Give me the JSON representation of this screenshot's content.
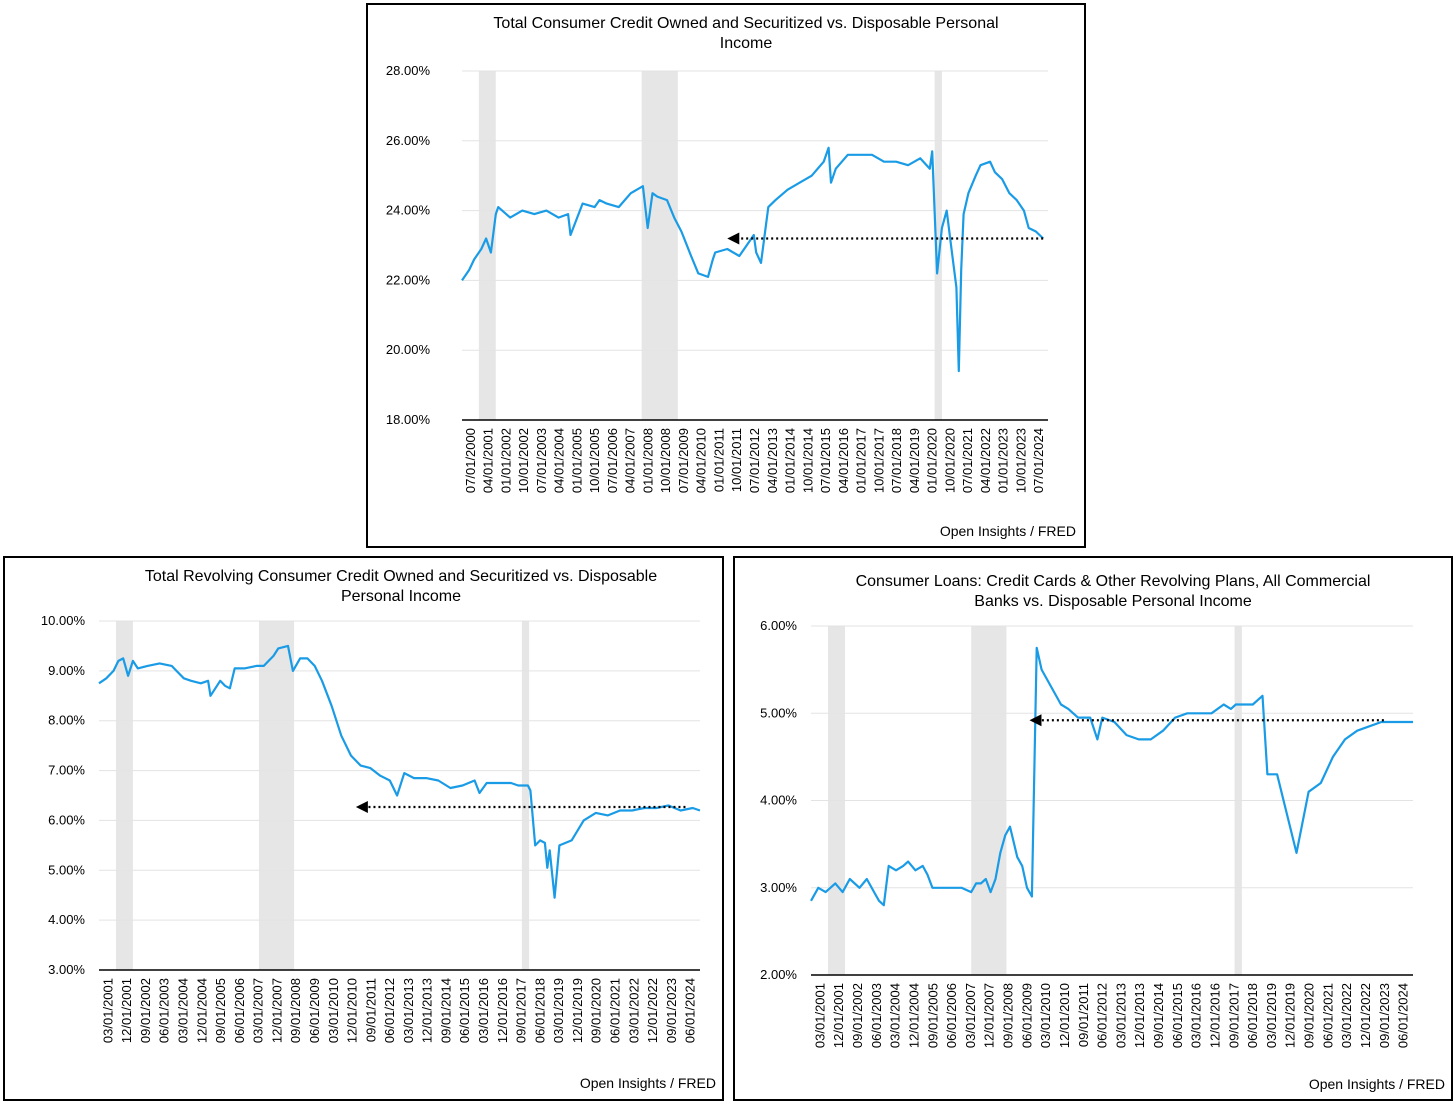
{
  "source_label": "Open Insights / FRED",
  "colors": {
    "line": "#1a9be6",
    "recession": "#e6e6e6",
    "grid": "#e3e3e3",
    "arrow": "#000000"
  },
  "chart_data": [
    {
      "id": "top",
      "type": "line",
      "title": "Total Consumer Credit Owned and Securitized vs. Disposable Personal Income",
      "title_lines": [
        "Total Consumer Credit Owned and Securitized vs. Disposable Personal",
        "Income"
      ],
      "xlabel": "",
      "ylabel": "",
      "x_range": [
        2000.5,
        2024.8
      ],
      "ylim": [
        18,
        28
      ],
      "y_ticks": [
        18,
        20,
        22,
        24,
        26,
        28
      ],
      "y_tick_labels": [
        "18.00%",
        "20.00%",
        "22.00%",
        "24.00%",
        "26.00%",
        "28.00%"
      ],
      "x_tick_labels": [
        "07/01/2000",
        "04/01/2001",
        "01/01/2002",
        "10/01/2002",
        "07/01/2003",
        "04/01/2004",
        "01/01/2005",
        "10/01/2005",
        "07/01/2006",
        "04/01/2007",
        "01/01/2008",
        "10/01/2008",
        "07/01/2009",
        "04/01/2010",
        "01/01/2011",
        "10/01/2011",
        "07/01/2012",
        "04/01/2013",
        "01/01/2014",
        "10/01/2014",
        "07/01/2015",
        "04/01/2016",
        "01/01/2017",
        "10/01/2017",
        "07/01/2018",
        "04/01/2019",
        "01/01/2020",
        "10/01/2020",
        "07/01/2021",
        "04/01/2022",
        "01/01/2023",
        "10/01/2023",
        "07/01/2024"
      ],
      "recessions": [
        [
          2001.2,
          2001.9
        ],
        [
          2007.95,
          2009.45
        ],
        [
          2020.1,
          2020.4
        ]
      ],
      "arrow": {
        "y": 23.2,
        "x_from": 2024.6,
        "x_to": 2011.5
      },
      "x": [
        2000.5,
        2000.8,
        2001.0,
        2001.3,
        2001.5,
        2001.7,
        2001.9,
        2002.0,
        2002.5,
        2003.0,
        2003.5,
        2004.0,
        2004.5,
        2004.9,
        2005.0,
        2005.5,
        2006.0,
        2006.2,
        2006.5,
        2007.0,
        2007.5,
        2008.0,
        2008.2,
        2008.4,
        2008.6,
        2009.0,
        2009.3,
        2009.6,
        2010.0,
        2010.3,
        2010.7,
        2010.9,
        2011.0,
        2011.5,
        2012.0,
        2012.3,
        2012.6,
        2012.7,
        2012.9,
        2013.2,
        2013.5,
        2014.0,
        2014.5,
        2015.0,
        2015.5,
        2015.7,
        2015.8,
        2016.0,
        2016.5,
        2017.0,
        2017.5,
        2018.0,
        2018.5,
        2019.0,
        2019.5,
        2019.9,
        2020.0,
        2020.2,
        2020.4,
        2020.6,
        2020.8,
        2021.0,
        2021.1,
        2021.2,
        2021.3,
        2021.5,
        2021.8,
        2022.0,
        2022.4,
        2022.6,
        2022.9,
        2023.2,
        2023.5,
        2023.8,
        2024.0,
        2024.3,
        2024.6
      ],
      "values": [
        22.0,
        22.3,
        22.6,
        22.9,
        23.2,
        22.8,
        23.9,
        24.1,
        23.8,
        24.0,
        23.9,
        24.0,
        23.8,
        23.9,
        23.3,
        24.2,
        24.1,
        24.3,
        24.2,
        24.1,
        24.5,
        24.7,
        23.5,
        24.5,
        24.4,
        24.3,
        23.8,
        23.4,
        22.7,
        22.2,
        22.1,
        22.6,
        22.8,
        22.9,
        22.7,
        23.0,
        23.3,
        22.8,
        22.5,
        24.1,
        24.3,
        24.6,
        24.8,
        25.0,
        25.4,
        25.8,
        24.8,
        25.2,
        25.6,
        25.6,
        25.6,
        25.4,
        25.4,
        25.3,
        25.5,
        25.2,
        25.7,
        22.2,
        23.5,
        24.0,
        22.9,
        21.8,
        19.4,
        22.3,
        23.9,
        24.5,
        25.0,
        25.3,
        25.4,
        25.1,
        24.9,
        24.5,
        24.3,
        24.0,
        23.5,
        23.4,
        23.2
      ]
    },
    {
      "id": "left",
      "type": "line",
      "title": "Total Revolving Consumer Credit Owned and Securitized vs. Disposable Personal Income",
      "title_lines": [
        "Total Revolving Consumer Credit Owned and Securitized vs. Disposable",
        "Personal Income"
      ],
      "xlabel": "",
      "ylabel": "",
      "x_range": [
        2000.0,
        2024.8
      ],
      "ylim": [
        3,
        10
      ],
      "y_ticks": [
        3,
        4,
        5,
        6,
        7,
        8,
        9,
        10
      ],
      "y_tick_labels": [
        "3.00%",
        "4.00%",
        "5.00%",
        "6.00%",
        "7.00%",
        "8.00%",
        "9.00%",
        "10.00%"
      ],
      "x_tick_labels": [
        "03/01/2001",
        "12/01/2001",
        "09/01/2002",
        "06/01/2003",
        "03/01/2004",
        "12/01/2004",
        "09/01/2005",
        "06/01/2006",
        "03/01/2007",
        "12/01/2007",
        "09/01/2008",
        "06/01/2009",
        "03/01/2010",
        "12/01/2010",
        "09/01/2011",
        "06/01/2012",
        "03/01/2013",
        "12/01/2013",
        "09/01/2014",
        "06/01/2015",
        "03/01/2016",
        "12/01/2016",
        "09/01/2017",
        "06/01/2018",
        "03/01/2019",
        "12/01/2019",
        "09/01/2020",
        "06/01/2021",
        "03/01/2022",
        "12/01/2022",
        "09/01/2023",
        "06/01/2024"
      ],
      "recessions": [
        [
          2000.7,
          2001.4
        ],
        [
          2006.6,
          2008.05
        ],
        [
          2017.45,
          2017.75
        ]
      ],
      "arrow": {
        "y": 6.27,
        "x_from": 2024.2,
        "x_to": 2010.6
      },
      "x": [
        2000.0,
        2000.3,
        2000.6,
        2000.8,
        2001.0,
        2001.2,
        2001.4,
        2001.6,
        2002.0,
        2002.5,
        2003.0,
        2003.2,
        2003.5,
        2003.8,
        2004.2,
        2004.5,
        2004.6,
        2005.0,
        2005.2,
        2005.4,
        2005.6,
        2006.0,
        2006.5,
        2006.8,
        2007.0,
        2007.2,
        2007.4,
        2007.8,
        2008.0,
        2008.3,
        2008.6,
        2008.9,
        2009.2,
        2009.6,
        2010.0,
        2010.4,
        2010.8,
        2011.2,
        2011.6,
        2012.0,
        2012.3,
        2012.6,
        2013.0,
        2013.5,
        2014.0,
        2014.5,
        2015.0,
        2015.5,
        2015.7,
        2016.0,
        2016.5,
        2017.0,
        2017.3,
        2017.7,
        2017.8,
        2018.0,
        2018.2,
        2018.4,
        2018.5,
        2018.6,
        2018.8,
        2019.0,
        2019.5,
        2020.0,
        2020.5,
        2021.0,
        2021.5,
        2022.0,
        2022.5,
        2023.0,
        2023.5,
        2024.0,
        2024.5,
        2024.8
      ],
      "values": [
        8.75,
        8.85,
        9.0,
        9.2,
        9.25,
        8.9,
        9.2,
        9.05,
        9.1,
        9.15,
        9.1,
        9.0,
        8.85,
        8.8,
        8.75,
        8.8,
        8.5,
        8.8,
        8.7,
        8.65,
        9.05,
        9.05,
        9.1,
        9.1,
        9.2,
        9.3,
        9.45,
        9.5,
        9.0,
        9.25,
        9.25,
        9.1,
        8.8,
        8.3,
        7.7,
        7.3,
        7.1,
        7.05,
        6.9,
        6.8,
        6.5,
        6.95,
        6.85,
        6.85,
        6.8,
        6.65,
        6.7,
        6.8,
        6.55,
        6.75,
        6.75,
        6.75,
        6.7,
        6.7,
        6.6,
        5.5,
        5.6,
        5.55,
        5.05,
        5.4,
        4.45,
        5.5,
        5.6,
        6.0,
        6.15,
        6.1,
        6.2,
        6.2,
        6.25,
        6.25,
        6.3,
        6.2,
        6.25,
        6.2
      ]
    },
    {
      "id": "right",
      "type": "line",
      "title": "Consumer Loans: Credit Cards & Other Revolving Plans, All Commercial Banks vs. Disposable Personal Income",
      "title_lines": [
        "Consumer Loans: Credit Cards & Other Revolving Plans, All Commercial",
        "Banks vs. Disposable Personal Income"
      ],
      "xlabel": "",
      "ylabel": "",
      "x_range": [
        2000.0,
        2024.8
      ],
      "ylim": [
        2,
        6
      ],
      "y_ticks": [
        2,
        3,
        4,
        5,
        6
      ],
      "y_tick_labels": [
        "2.00%",
        "3.00%",
        "4.00%",
        "5.00%",
        "6.00%"
      ],
      "x_tick_labels": [
        "03/01/2001",
        "12/01/2001",
        "09/01/2002",
        "06/01/2003",
        "03/01/2004",
        "12/01/2004",
        "09/01/2005",
        "06/01/2006",
        "03/01/2007",
        "12/01/2007",
        "09/01/2008",
        "06/01/2009",
        "03/01/2010",
        "12/01/2010",
        "09/01/2011",
        "06/01/2012",
        "03/01/2013",
        "12/01/2013",
        "09/01/2014",
        "06/01/2015",
        "03/01/2016",
        "12/01/2016",
        "09/01/2017",
        "06/01/2018",
        "03/01/2019",
        "12/01/2019",
        "09/01/2020",
        "06/01/2021",
        "03/01/2022",
        "12/01/2022",
        "09/01/2023",
        "06/01/2024"
      ],
      "recessions": [
        [
          2000.7,
          2001.4
        ],
        [
          2006.6,
          2008.05
        ],
        [
          2017.45,
          2017.75
        ]
      ],
      "arrow": {
        "y": 4.92,
        "x_from": 2023.6,
        "x_to": 2009.0
      },
      "x": [
        2000.0,
        2000.3,
        2000.6,
        2001.0,
        2001.3,
        2001.6,
        2002.0,
        2002.3,
        2002.6,
        2002.8,
        2003.0,
        2003.2,
        2003.5,
        2003.8,
        2004.0,
        2004.3,
        2004.6,
        2004.8,
        2005.0,
        2005.4,
        2005.8,
        2006.2,
        2006.6,
        2006.8,
        2007.0,
        2007.2,
        2007.4,
        2007.6,
        2007.8,
        2008.0,
        2008.2,
        2008.5,
        2008.7,
        2008.9,
        2009.1,
        2009.3,
        2009.5,
        2010.0,
        2010.3,
        2010.6,
        2011.0,
        2011.5,
        2011.8,
        2012.0,
        2012.5,
        2013.0,
        2013.5,
        2014.0,
        2014.5,
        2015.0,
        2015.5,
        2016.0,
        2016.5,
        2017.0,
        2017.3,
        2017.5,
        2017.6,
        2017.9,
        2018.2,
        2018.4,
        2018.6,
        2018.8,
        2019.2,
        2019.6,
        2020.0,
        2020.5,
        2021.0,
        2021.5,
        2022.0,
        2022.5,
        2023.0,
        2023.5,
        2024.0,
        2024.5,
        2024.8
      ],
      "values": [
        2.85,
        3.0,
        2.95,
        3.05,
        2.95,
        3.1,
        3.0,
        3.1,
        2.95,
        2.85,
        2.8,
        3.25,
        3.2,
        3.25,
        3.3,
        3.2,
        3.25,
        3.15,
        3.0,
        3.0,
        3.0,
        3.0,
        2.95,
        3.05,
        3.05,
        3.1,
        2.95,
        3.1,
        3.4,
        3.6,
        3.7,
        3.35,
        3.25,
        3.0,
        2.9,
        5.75,
        5.5,
        5.25,
        5.1,
        5.05,
        4.95,
        4.95,
        4.7,
        4.95,
        4.9,
        4.75,
        4.7,
        4.7,
        4.8,
        4.95,
        5.0,
        5.0,
        5.0,
        5.1,
        5.05,
        5.1,
        5.1,
        5.1,
        5.1,
        5.15,
        5.2,
        4.3,
        4.3,
        3.85,
        3.4,
        4.1,
        4.2,
        4.5,
        4.7,
        4.8,
        4.85,
        4.9,
        4.9,
        4.9,
        4.9
      ]
    }
  ]
}
